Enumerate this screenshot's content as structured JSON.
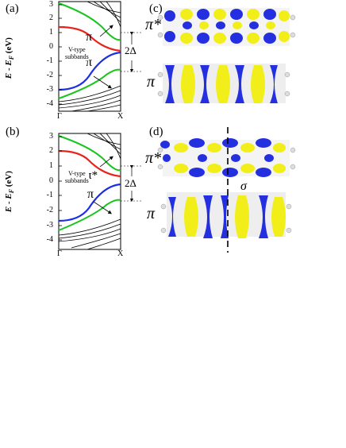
{
  "panels": {
    "a": {
      "label": "(a)"
    },
    "b": {
      "label": "(b)"
    },
    "c": {
      "label": "(c)"
    },
    "d": {
      "label": "(d)"
    }
  },
  "band_plot": {
    "ylabel": "E - E",
    "ylabel_sub": "F",
    "ylabel_unit": " (eV)",
    "yticks": [
      "3",
      "2",
      "1",
      "0",
      "-1",
      "-2",
      "-3",
      "-4"
    ],
    "xticks": [
      "Γ",
      "X"
    ],
    "annot_vtype": "V-type",
    "annot_subbands": "subbands",
    "gap_label": "2Δ",
    "pi_label": "π",
    "pistar_label": "π*"
  },
  "orbitals": {
    "pistar": "π*",
    "pi": "π",
    "sigma": "σ"
  },
  "colors": {
    "red": "#e8231c",
    "green": "#19c41d",
    "blue": "#1c2ee6",
    "lobe_blue": "#2430e0",
    "lobe_yellow": "#f2ee1a"
  }
}
